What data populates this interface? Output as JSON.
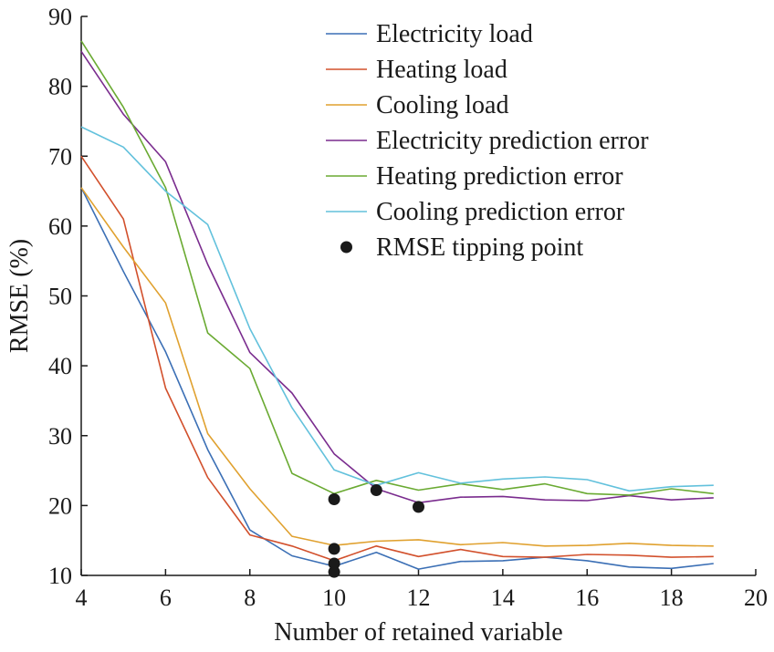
{
  "chart_data": {
    "type": "line",
    "title": "",
    "xlabel": "Number of retained variable",
    "ylabel": "RMSE (%)",
    "xlim": [
      4,
      20
    ],
    "ylim": [
      10,
      90
    ],
    "xticks": [
      "4",
      "6",
      "8",
      "10",
      "12",
      "14",
      "16",
      "18",
      "20"
    ],
    "yticks": [
      "10",
      "20",
      "30",
      "40",
      "50",
      "60",
      "70",
      "80",
      "90"
    ],
    "grid": false,
    "legend_position": "top-right",
    "x": [
      4,
      5,
      6,
      7,
      8,
      9,
      10,
      11,
      12,
      13,
      14,
      15,
      16,
      17,
      18,
      19
    ],
    "series": [
      {
        "name": "Electricity load",
        "color": "#3b6fb5",
        "values": [
          65.5,
          53.5,
          42,
          28,
          16.5,
          12.8,
          11.3,
          13.3,
          10.9,
          12.0,
          12.1,
          12.6,
          12.1,
          11.2,
          11.0,
          11.7
        ]
      },
      {
        "name": "Heating load",
        "color": "#d2502c",
        "values": [
          70,
          61,
          36.8,
          24,
          15.8,
          14.2,
          12.1,
          14.2,
          12.7,
          13.7,
          12.7,
          12.6,
          13.0,
          12.9,
          12.6,
          12.7
        ]
      },
      {
        "name": "Cooling load",
        "color": "#e0a12f",
        "values": [
          65.5,
          57,
          49,
          30.3,
          22.4,
          15.6,
          14.3,
          14.9,
          15.1,
          14.4,
          14.7,
          14.2,
          14.3,
          14.6,
          14.3,
          14.2
        ]
      },
      {
        "name": "Electricity prediction error",
        "color": "#7a2c8e",
        "values": [
          85,
          76,
          69.2,
          54.5,
          41.9,
          36.1,
          27.4,
          22.4,
          20.4,
          21.2,
          21.3,
          20.8,
          20.7,
          21.4,
          20.8,
          21.1
        ]
      },
      {
        "name": "Heating prediction error",
        "color": "#6aaa32",
        "values": [
          86.5,
          77,
          65.5,
          44.7,
          39.6,
          24.6,
          21.7,
          23.6,
          22.2,
          23.1,
          22.3,
          23.1,
          21.7,
          21.5,
          22.4,
          21.7
        ]
      },
      {
        "name": "Cooling prediction error",
        "color": "#62c1dc",
        "values": [
          74.2,
          71.3,
          65,
          60.2,
          45.3,
          34.0,
          25.1,
          22.9,
          24.7,
          23.2,
          23.8,
          24.1,
          23.7,
          22.1,
          22.7,
          22.9
        ]
      }
    ],
    "tipping_points": {
      "name": "RMSE tipping point",
      "color": "#1a1a1a",
      "points": [
        [
          10,
          20.9
        ],
        [
          11,
          22.2
        ],
        [
          12,
          19.8
        ],
        [
          10,
          13.8
        ],
        [
          10,
          11.7
        ],
        [
          10,
          10.5
        ]
      ]
    }
  }
}
